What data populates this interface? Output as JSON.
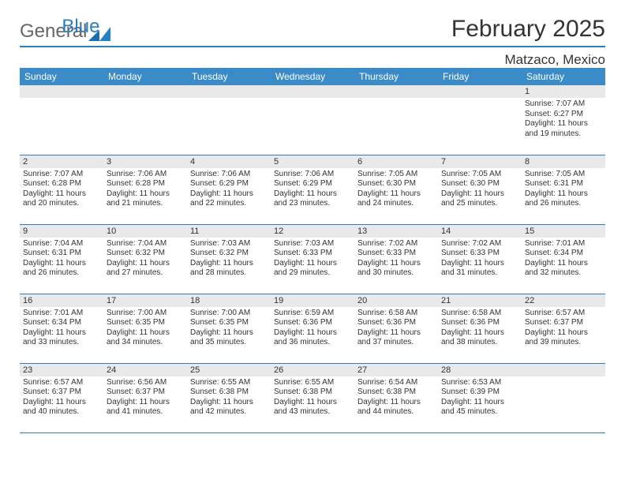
{
  "brand": {
    "part1": "General",
    "part2": "Blue",
    "part1_color": "#6d6d6d",
    "part2_color": "#2a7fbf"
  },
  "title": "February 2025",
  "location": "Matzaco, Mexico",
  "colors": {
    "header_bg": "#3b8bc8",
    "header_text": "#ffffff",
    "rule": "#2f7eb6",
    "daynum_bg": "#e9e9e9",
    "text": "#333333",
    "background": "#ffffff"
  },
  "typography": {
    "title_fontsize": 30,
    "location_fontsize": 17,
    "dayhead_fontsize": 12,
    "daynum_fontsize": 11,
    "body_fontsize": 10
  },
  "grid": {
    "cols": 7,
    "rows": 5,
    "first_day_col": 6,
    "days_in_month": 28
  },
  "weekdays": [
    "Sunday",
    "Monday",
    "Tuesday",
    "Wednesday",
    "Thursday",
    "Friday",
    "Saturday"
  ],
  "days": [
    {
      "n": 1,
      "sunrise": "7:07 AM",
      "sunset": "6:27 PM",
      "daylight": "11 hours and 19 minutes."
    },
    {
      "n": 2,
      "sunrise": "7:07 AM",
      "sunset": "6:28 PM",
      "daylight": "11 hours and 20 minutes."
    },
    {
      "n": 3,
      "sunrise": "7:06 AM",
      "sunset": "6:28 PM",
      "daylight": "11 hours and 21 minutes."
    },
    {
      "n": 4,
      "sunrise": "7:06 AM",
      "sunset": "6:29 PM",
      "daylight": "11 hours and 22 minutes."
    },
    {
      "n": 5,
      "sunrise": "7:06 AM",
      "sunset": "6:29 PM",
      "daylight": "11 hours and 23 minutes."
    },
    {
      "n": 6,
      "sunrise": "7:05 AM",
      "sunset": "6:30 PM",
      "daylight": "11 hours and 24 minutes."
    },
    {
      "n": 7,
      "sunrise": "7:05 AM",
      "sunset": "6:30 PM",
      "daylight": "11 hours and 25 minutes."
    },
    {
      "n": 8,
      "sunrise": "7:05 AM",
      "sunset": "6:31 PM",
      "daylight": "11 hours and 26 minutes."
    },
    {
      "n": 9,
      "sunrise": "7:04 AM",
      "sunset": "6:31 PM",
      "daylight": "11 hours and 26 minutes."
    },
    {
      "n": 10,
      "sunrise": "7:04 AM",
      "sunset": "6:32 PM",
      "daylight": "11 hours and 27 minutes."
    },
    {
      "n": 11,
      "sunrise": "7:03 AM",
      "sunset": "6:32 PM",
      "daylight": "11 hours and 28 minutes."
    },
    {
      "n": 12,
      "sunrise": "7:03 AM",
      "sunset": "6:33 PM",
      "daylight": "11 hours and 29 minutes."
    },
    {
      "n": 13,
      "sunrise": "7:02 AM",
      "sunset": "6:33 PM",
      "daylight": "11 hours and 30 minutes."
    },
    {
      "n": 14,
      "sunrise": "7:02 AM",
      "sunset": "6:33 PM",
      "daylight": "11 hours and 31 minutes."
    },
    {
      "n": 15,
      "sunrise": "7:01 AM",
      "sunset": "6:34 PM",
      "daylight": "11 hours and 32 minutes."
    },
    {
      "n": 16,
      "sunrise": "7:01 AM",
      "sunset": "6:34 PM",
      "daylight": "11 hours and 33 minutes."
    },
    {
      "n": 17,
      "sunrise": "7:00 AM",
      "sunset": "6:35 PM",
      "daylight": "11 hours and 34 minutes."
    },
    {
      "n": 18,
      "sunrise": "7:00 AM",
      "sunset": "6:35 PM",
      "daylight": "11 hours and 35 minutes."
    },
    {
      "n": 19,
      "sunrise": "6:59 AM",
      "sunset": "6:36 PM",
      "daylight": "11 hours and 36 minutes."
    },
    {
      "n": 20,
      "sunrise": "6:58 AM",
      "sunset": "6:36 PM",
      "daylight": "11 hours and 37 minutes."
    },
    {
      "n": 21,
      "sunrise": "6:58 AM",
      "sunset": "6:36 PM",
      "daylight": "11 hours and 38 minutes."
    },
    {
      "n": 22,
      "sunrise": "6:57 AM",
      "sunset": "6:37 PM",
      "daylight": "11 hours and 39 minutes."
    },
    {
      "n": 23,
      "sunrise": "6:57 AM",
      "sunset": "6:37 PM",
      "daylight": "11 hours and 40 minutes."
    },
    {
      "n": 24,
      "sunrise": "6:56 AM",
      "sunset": "6:37 PM",
      "daylight": "11 hours and 41 minutes."
    },
    {
      "n": 25,
      "sunrise": "6:55 AM",
      "sunset": "6:38 PM",
      "daylight": "11 hours and 42 minutes."
    },
    {
      "n": 26,
      "sunrise": "6:55 AM",
      "sunset": "6:38 PM",
      "daylight": "11 hours and 43 minutes."
    },
    {
      "n": 27,
      "sunrise": "6:54 AM",
      "sunset": "6:38 PM",
      "daylight": "11 hours and 44 minutes."
    },
    {
      "n": 28,
      "sunrise": "6:53 AM",
      "sunset": "6:39 PM",
      "daylight": "11 hours and 45 minutes."
    }
  ],
  "labels": {
    "sunrise": "Sunrise:",
    "sunset": "Sunset:",
    "daylight": "Daylight:"
  }
}
